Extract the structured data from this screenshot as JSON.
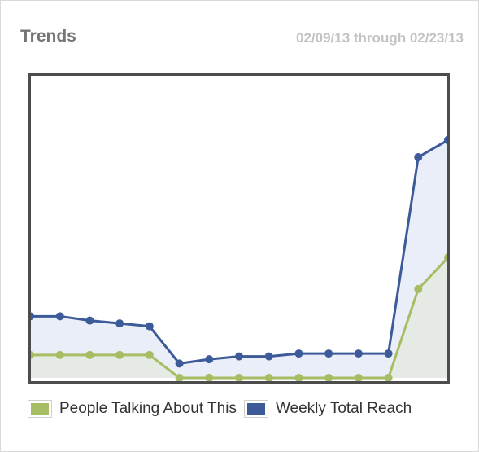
{
  "header": {
    "title": "Trends",
    "date_range": "02/09/13 through 02/23/13"
  },
  "colors": {
    "reach": "#3d5a99",
    "reach_fill": "#eaeef8",
    "talking": "#a6bd63",
    "talking_fill": "#e6eae5",
    "frame": "#4d4d4d"
  },
  "chart_data": {
    "type": "line",
    "title": "Trends",
    "xlabel": "",
    "ylabel": "",
    "ylim": [
      0,
      100
    ],
    "x": [
      1,
      2,
      3,
      4,
      5,
      6,
      7,
      8,
      9,
      10,
      11,
      12,
      13,
      14,
      15
    ],
    "grid": false,
    "legend_position": "bottom-left",
    "series": [
      {
        "name": "Weekly Total Reach",
        "color": "#3d5a99",
        "values": [
          21.5,
          21.5,
          20,
          19,
          18,
          5,
          6.5,
          7.5,
          7.5,
          8.5,
          8.5,
          8.5,
          8.5,
          77,
          83
        ]
      },
      {
        "name": "People Talking About This",
        "color": "#a6bd63",
        "values": [
          8,
          8,
          8,
          8,
          8,
          0,
          0,
          0,
          0,
          0,
          0,
          0,
          0,
          31,
          42
        ]
      }
    ]
  }
}
